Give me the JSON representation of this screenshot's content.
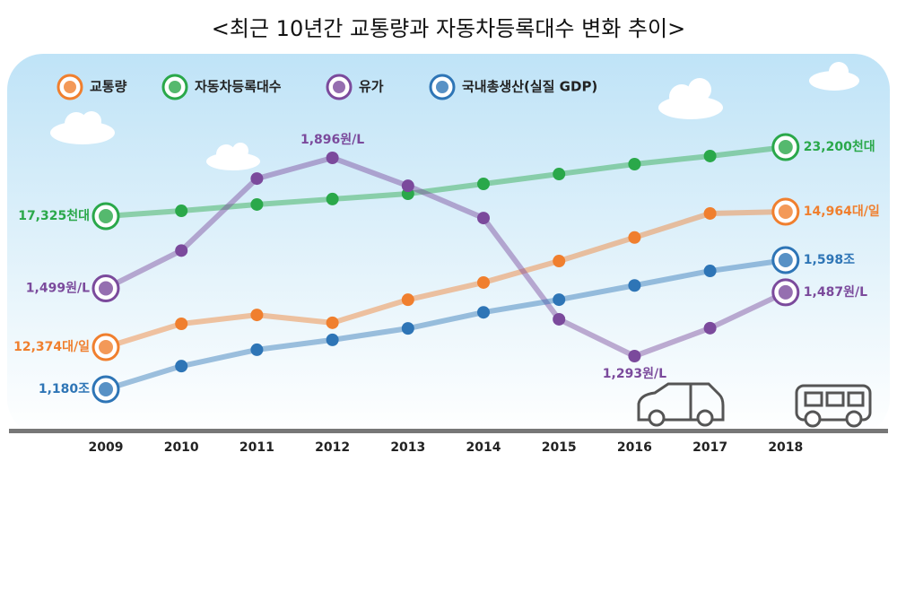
{
  "chart_data": {
    "type": "line",
    "title": "<최근 10년간 교통량과 자동차등록대수 변화 추이>",
    "categories": [
      "2009",
      "2010",
      "2011",
      "2012",
      "2013",
      "2014",
      "2015",
      "2016",
      "2017",
      "2018"
    ],
    "series": [
      {
        "name": "교통량",
        "color": "#f07f2e",
        "values": [
          12374,
          12820,
          12990,
          12840,
          13280,
          13610,
          14020,
          14470,
          14930,
          14964
        ],
        "value_labels": [
          "12,374대/일",
          null,
          null,
          null,
          null,
          null,
          null,
          null,
          null,
          "14,964대/일"
        ]
      },
      {
        "name": "자동차등록대수",
        "color": "#2aa84a",
        "values": [
          17325,
          17780,
          18320,
          18780,
          19230,
          20070,
          20910,
          21750,
          22440,
          23200
        ],
        "value_labels": [
          "17,325천대",
          null,
          null,
          null,
          null,
          null,
          null,
          null,
          null,
          "23,200천대"
        ]
      },
      {
        "name": "유가",
        "color": "#7b4a9c",
        "values": [
          1499,
          1614,
          1833,
          1896,
          1811,
          1713,
          1405,
          1293,
          1378,
          1487
        ],
        "value_labels": [
          "1,499원/L",
          null,
          null,
          "1,896원/L",
          null,
          null,
          null,
          "1,293원/L",
          null,
          "1,487원/L"
        ]
      },
      {
        "name": "국내총생산(실질 GDP)",
        "color": "#2e75b6",
        "values": [
          1180,
          1255,
          1308,
          1340,
          1377,
          1429,
          1470,
          1516,
          1563,
          1598
        ],
        "value_labels": [
          "1,180조",
          null,
          null,
          null,
          null,
          null,
          null,
          null,
          null,
          "1,598조"
        ]
      }
    ]
  }
}
